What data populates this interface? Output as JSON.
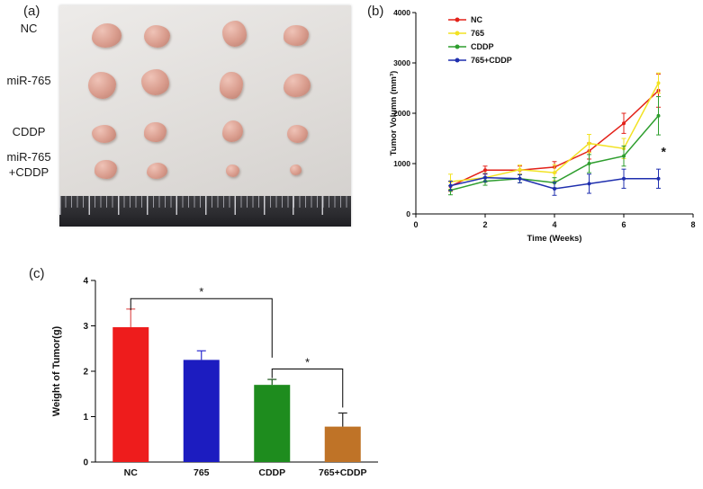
{
  "figure": {
    "panel_a_label": "(a)",
    "panel_b_label": "(b)",
    "panel_c_label": "(c)"
  },
  "panels": {
    "a": {
      "row_labels": [
        "NC",
        "miR-765",
        "CDDP",
        "miR-765\n+CDDP"
      ],
      "grid": {
        "rows": 4,
        "cols": 4
      },
      "tumor_color": "#d99c8d",
      "tumor_rows": [
        [
          {
            "x": 11,
            "y": 8,
            "w": 33,
            "h": 27
          },
          {
            "x": 29,
            "y": 9,
            "w": 29,
            "h": 25
          },
          {
            "x": 56,
            "y": 7,
            "w": 27,
            "h": 29
          },
          {
            "x": 77,
            "y": 9,
            "w": 28,
            "h": 23
          }
        ],
        [
          {
            "x": 10,
            "y": 30,
            "w": 31,
            "h": 30
          },
          {
            "x": 28,
            "y": 29,
            "w": 31,
            "h": 29
          },
          {
            "x": 55,
            "y": 30,
            "w": 26,
            "h": 30
          },
          {
            "x": 77,
            "y": 31,
            "w": 30,
            "h": 26
          }
        ],
        [
          {
            "x": 11,
            "y": 54,
            "w": 27,
            "h": 20
          },
          {
            "x": 29,
            "y": 53,
            "w": 25,
            "h": 22
          },
          {
            "x": 56,
            "y": 52,
            "w": 23,
            "h": 24
          },
          {
            "x": 78,
            "y": 54,
            "w": 23,
            "h": 20
          }
        ],
        [
          {
            "x": 12,
            "y": 70,
            "w": 25,
            "h": 21
          },
          {
            "x": 30,
            "y": 71,
            "w": 23,
            "h": 18
          },
          {
            "x": 57,
            "y": 72,
            "w": 15,
            "h": 14
          },
          {
            "x": 79,
            "y": 72,
            "w": 13,
            "h": 12
          }
        ]
      ]
    }
  },
  "chart_data": [
    {
      "id": "tumor-volume-line",
      "type": "line",
      "title": "",
      "xlabel": "Time (Weeks)",
      "ylabel": "Tumor Volumn (mm³)",
      "xlim": [
        0,
        8
      ],
      "ylim": [
        0,
        4000
      ],
      "xticks": [
        0,
        2,
        4,
        6,
        8
      ],
      "yticks": [
        0,
        1000,
        2000,
        3000,
        4000
      ],
      "grid": false,
      "legend_position": "top-left-inside",
      "x": [
        1,
        2,
        3,
        4,
        5,
        6,
        7
      ],
      "series": [
        {
          "name": "NC",
          "color": "#e32119",
          "values": [
            550,
            870,
            870,
            930,
            1250,
            1800,
            2450
          ],
          "errors": [
            100,
            80,
            80,
            110,
            160,
            200,
            330
          ]
        },
        {
          "name": "765",
          "color": "#f2e223",
          "values": [
            640,
            720,
            880,
            820,
            1400,
            1300,
            2600
          ],
          "errors": [
            150,
            90,
            90,
            160,
            180,
            200,
            200
          ]
        },
        {
          "name": "CDDP",
          "color": "#2e9e2e",
          "values": [
            470,
            650,
            700,
            620,
            1000,
            1150,
            1950
          ],
          "errors": [
            90,
            80,
            80,
            100,
            180,
            200,
            380
          ]
        },
        {
          "name": "765+CDDP",
          "color": "#1f2fae",
          "values": [
            560,
            720,
            700,
            500,
            600,
            700,
            700
          ],
          "errors": [
            90,
            80,
            80,
            130,
            190,
            190,
            190
          ]
        }
      ],
      "annotation": {
        "text": "*",
        "x": 7.15,
        "y": 1150
      }
    },
    {
      "id": "tumor-weight-bar",
      "type": "bar",
      "title": "",
      "xlabel": "",
      "ylabel": "Weight of Tumor(g)",
      "ylim": [
        0,
        4
      ],
      "yticks": [
        0,
        1,
        2,
        3,
        4
      ],
      "grid": false,
      "categories": [
        "NC",
        "765",
        "CDDP",
        "765+CDDP"
      ],
      "values": [
        2.97,
        2.25,
        1.7,
        0.78
      ],
      "errors": [
        0.4,
        0.2,
        0.12,
        0.3
      ],
      "colors": [
        "#ee1c1c",
        "#1c1cc0",
        "#1e8c1e",
        "#bf7327"
      ],
      "error_colors": [
        "#e05555",
        "#2a2ad0",
        "#145214",
        "#222222"
      ],
      "significance": [
        {
          "from": 0,
          "to": 2,
          "y": 3.6,
          "drop_from": 0.25,
          "drop_to": 1.3,
          "label": "*"
        },
        {
          "from": 2,
          "to": 3,
          "y": 2.05,
          "drop_from": 0.2,
          "drop_to": 0.85,
          "label": "*"
        }
      ]
    }
  ]
}
